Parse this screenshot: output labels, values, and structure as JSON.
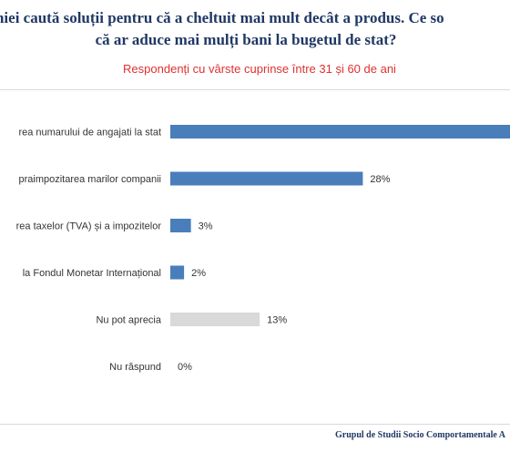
{
  "title_line_1": "mâniei caută soluții pentru că a cheltuit mai mult decât a produs. Ce so",
  "title_line_2": "că ar aduce mai mulți bani la bugetul de stat?",
  "subtitle": "Respondenți cu vârste cuprinse între 31 și 60 de ani",
  "footer": "Grupul de Studii Socio Comportamentale A",
  "colors": {
    "bar_primary": "#4a7ebb",
    "bar_neutral": "#d9d9d9",
    "title": "#1f3864",
    "subtitle": "#e03030"
  },
  "chart_data": {
    "type": "bar",
    "orientation": "horizontal",
    "categories": [
      "rea numarului de angajati la stat",
      "praimpozitarea marilor companii",
      "rea taxelor (TVA) și a impozitelor",
      "la Fondul Monetar Internațional",
      "Nu pot aprecia",
      "Nu răspund"
    ],
    "values": [
      55,
      28,
      3,
      2,
      13,
      0
    ],
    "value_labels": [
      "",
      "28%",
      "3%",
      "2%",
      "13%",
      "0%"
    ],
    "bar_colors": [
      "#4a7ebb",
      "#4a7ebb",
      "#4a7ebb",
      "#4a7ebb",
      "#d9d9d9",
      "#d9d9d9"
    ],
    "xlim": [
      0,
      55
    ],
    "grid": false,
    "legend": "none"
  }
}
